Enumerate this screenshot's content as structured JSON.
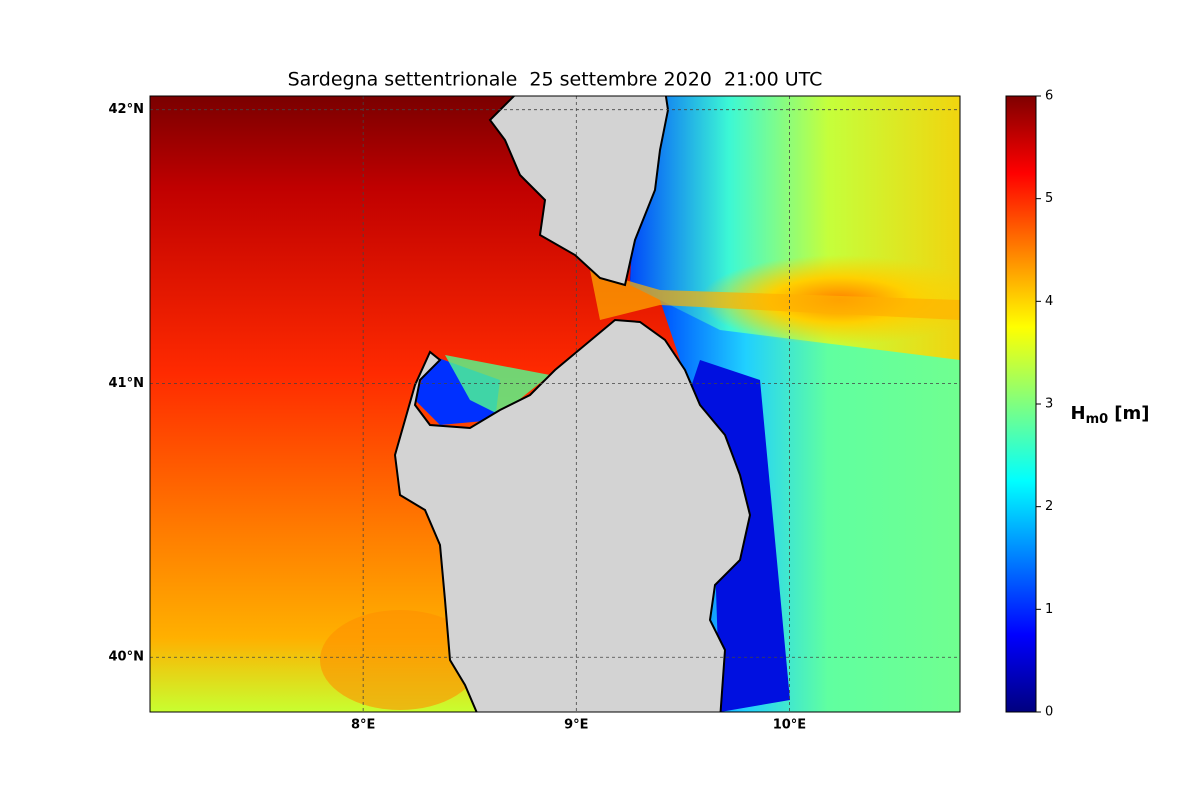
{
  "map": {
    "title": "Sardegna settentrionale  25 settembre 2020  21:00 UTC",
    "lonlim": [
      7.0,
      10.8
    ],
    "latlim": [
      39.8,
      42.05
    ],
    "lon_ticks": [
      {
        "value": 8,
        "label": "8°E"
      },
      {
        "value": 9,
        "label": "9°E"
      },
      {
        "value": 10,
        "label": "10°E"
      }
    ],
    "lat_ticks": [
      {
        "value": 40,
        "label": "40°N"
      },
      {
        "value": 41,
        "label": "41°N"
      },
      {
        "value": 42,
        "label": "42°N"
      }
    ],
    "grid": true,
    "colorbar": {
      "label": {
        "main": "H",
        "sub": "m0",
        "unit": "[m]"
      },
      "lim": [
        0,
        6
      ],
      "ticks": [
        0,
        1,
        2,
        3,
        4,
        5,
        6
      ]
    }
  }
}
